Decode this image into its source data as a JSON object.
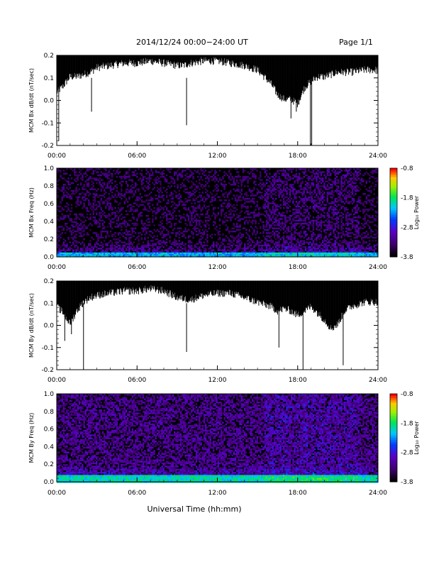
{
  "header": {
    "title": "2014/12/24  00:00−24:00 UT",
    "page": "Page 1/1"
  },
  "xlabel": "Universal Time (hh:mm)",
  "chart_data": [
    {
      "type": "line",
      "ylabel": "MCM Bx dB/dt (nT/sec)",
      "xlim_hours": [
        0,
        24
      ],
      "xticks": [
        "00:00",
        "06:00",
        "12:00",
        "18:00",
        "24:00"
      ],
      "ylim": [
        -0.2,
        0.2
      ],
      "yticks": [
        "0.2",
        "0.1",
        "0.0",
        "-0.1",
        "-0.2"
      ],
      "color": "#000000",
      "envelope": {
        "x": [
          0,
          0.5,
          1.0,
          1.5,
          2.0,
          2.5,
          3,
          4,
          5,
          6,
          7,
          8,
          9,
          9.5,
          10,
          11,
          12,
          13,
          14,
          15,
          15.5,
          16,
          16.5,
          17,
          17.5,
          18,
          18.5,
          19,
          19.5,
          20,
          21,
          22,
          23,
          24
        ],
        "upper": [
          0.2,
          0.2,
          0.2,
          0.2,
          0.2,
          0.2,
          0.2,
          0.2,
          0.2,
          0.2,
          0.2,
          0.2,
          0.2,
          0.2,
          0.2,
          0.2,
          0.2,
          0.2,
          0.2,
          0.2,
          0.2,
          0.2,
          0.2,
          0.2,
          0.2,
          0.2,
          0.2,
          0.2,
          0.2,
          0.2,
          0.2,
          0.2,
          0.2,
          0.2
        ],
        "lower": [
          0.03,
          0.06,
          0.1,
          0.1,
          0.11,
          0.12,
          0.14,
          0.15,
          0.16,
          0.16,
          0.17,
          0.16,
          0.15,
          0.15,
          0.16,
          0.17,
          0.17,
          0.16,
          0.15,
          0.13,
          0.1,
          0.07,
          0.02,
          0.0,
          0.0,
          -0.02,
          0.05,
          0.08,
          0.1,
          0.1,
          0.12,
          0.12,
          0.13,
          0.13
        ]
      },
      "spikes": [
        [
          0.15,
          -0.18
        ],
        [
          2.6,
          -0.05
        ],
        [
          9.7,
          -0.11
        ],
        [
          17.5,
          -0.08
        ],
        [
          17.9,
          -0.05
        ],
        [
          18.95,
          -0.2
        ],
        [
          19.05,
          -0.2
        ]
      ]
    },
    {
      "type": "heatmap",
      "ylabel": "MCM Bx Freq (Hz)",
      "xlim_hours": [
        0,
        24
      ],
      "xticks": [
        "00:00",
        "06:00",
        "12:00",
        "18:00",
        "24:00"
      ],
      "ylim": [
        0,
        1.0
      ],
      "yticks": [
        "1.0",
        "0.8",
        "0.6",
        "0.4",
        "0.2",
        "0.0"
      ],
      "colorbar": {
        "label": "Log₁₀ Power",
        "ticks": [
          "-0.8",
          "-1.8",
          "-2.8",
          "-3.8"
        ],
        "range": [
          -3.8,
          -0.8
        ]
      },
      "background_power": -3.8,
      "low_freq_band": {
        "fmax": 0.06,
        "power": -2.2
      },
      "bright_columns": [
        {
          "t": 9.65,
          "power": -1.6
        },
        {
          "t": 9.7,
          "power": -1.2
        },
        {
          "t": 16.2,
          "power": -2.4
        },
        {
          "t": 16.7,
          "power": -2.1
        },
        {
          "t": 17.1,
          "power": -2.0
        },
        {
          "t": 17.5,
          "power": -2.3
        },
        {
          "t": 18.3,
          "power": -2.4
        },
        {
          "t": 19.1,
          "power": -2.2
        },
        {
          "t": 19.5,
          "power": -2.5
        },
        {
          "t": 20.3,
          "power": -2.6
        },
        {
          "t": 21.3,
          "power": -2.2
        },
        {
          "t": 21.5,
          "power": -2.3
        },
        {
          "t": 21.7,
          "power": -2.5
        }
      ]
    },
    {
      "type": "line",
      "ylabel": "MCM By dB/dt (nT/sec)",
      "xlim_hours": [
        0,
        24
      ],
      "xticks": [
        "00:00",
        "06:00",
        "12:00",
        "18:00",
        "24:00"
      ],
      "ylim": [
        -0.2,
        0.2
      ],
      "yticks": [
        "0.2",
        "0.1",
        "0.0",
        "-0.1",
        "-0.2"
      ],
      "color": "#000000",
      "envelope": {
        "x": [
          0,
          0.5,
          1.0,
          1.5,
          2.0,
          2.5,
          3,
          4,
          5,
          6,
          7,
          8,
          9,
          10,
          11,
          12,
          13,
          14,
          15,
          16,
          16.5,
          17,
          17.5,
          18,
          18.5,
          19,
          19.5,
          20,
          20.5,
          21,
          21.5,
          22,
          23,
          24
        ],
        "upper": [
          0.2,
          0.2,
          0.2,
          0.2,
          0.2,
          0.2,
          0.2,
          0.2,
          0.2,
          0.2,
          0.2,
          0.2,
          0.2,
          0.2,
          0.2,
          0.2,
          0.2,
          0.2,
          0.2,
          0.2,
          0.2,
          0.2,
          0.2,
          0.2,
          0.2,
          0.2,
          0.2,
          0.2,
          0.2,
          0.2,
          0.2,
          0.2,
          0.2,
          0.2
        ],
        "lower": [
          0.08,
          0.05,
          0.0,
          0.06,
          0.1,
          0.12,
          0.13,
          0.14,
          0.15,
          0.15,
          0.16,
          0.15,
          0.12,
          0.11,
          0.13,
          0.14,
          0.14,
          0.12,
          0.1,
          0.08,
          0.06,
          0.07,
          0.06,
          0.04,
          0.06,
          0.08,
          0.05,
          0.02,
          -0.02,
          0.0,
          0.06,
          0.08,
          0.1,
          0.1
        ]
      },
      "spikes": [
        [
          0.6,
          -0.07
        ],
        [
          1.1,
          -0.04
        ],
        [
          2.0,
          -0.2
        ],
        [
          9.7,
          -0.12
        ],
        [
          16.6,
          -0.1
        ],
        [
          18.4,
          -0.2
        ],
        [
          21.4,
          -0.18
        ]
      ]
    },
    {
      "type": "heatmap",
      "ylabel": "MCM By Freq (Hz)",
      "xlim_hours": [
        0,
        24
      ],
      "xticks": [
        "00:00",
        "06:00",
        "12:00",
        "18:00",
        "24:00"
      ],
      "ylim": [
        0,
        1.0
      ],
      "yticks": [
        "1.0",
        "0.8",
        "0.6",
        "0.4",
        "0.2",
        "0.0"
      ],
      "colorbar": {
        "label": "Log₁₀ Power",
        "ticks": [
          "-0.8",
          "-1.8",
          "-2.8",
          "-3.8"
        ],
        "range": [
          -3.8,
          -0.8
        ]
      },
      "background_power": -3.5,
      "low_freq_band": {
        "fmax": 0.08,
        "power": -2.0
      },
      "bright_columns": [
        {
          "t": 9.65,
          "power": -1.6
        },
        {
          "t": 9.7,
          "power": -1.2
        },
        {
          "t": 16.5,
          "power": -2.4
        },
        {
          "t": 16.9,
          "power": -2.2
        },
        {
          "t": 17.7,
          "power": -2.5
        },
        {
          "t": 18.3,
          "power": -2.4
        },
        {
          "t": 19.1,
          "power": -2.3
        },
        {
          "t": 20.0,
          "power": -2.5
        },
        {
          "t": 20.6,
          "power": -2.4
        },
        {
          "t": 21.3,
          "power": -2.3
        },
        {
          "t": 21.6,
          "power": -2.4
        }
      ]
    }
  ]
}
